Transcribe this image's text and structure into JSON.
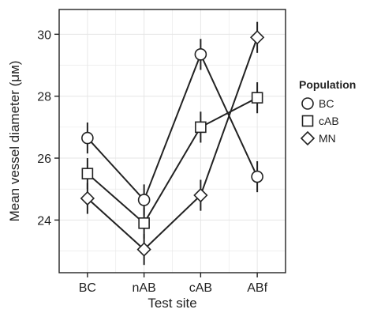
{
  "chart_data": {
    "type": "line",
    "title": "",
    "xlabel": "Test site",
    "ylabel": "Mean vessel diameter (μм)",
    "categories": [
      "BC",
      "nAB",
      "cAB",
      "ABf"
    ],
    "y_ticks": [
      24,
      26,
      28,
      30
    ],
    "ylim": [
      22.3,
      30.8
    ],
    "grid": true,
    "legend": {
      "title": "Population",
      "position": "right"
    },
    "series": [
      {
        "name": "BC",
        "marker": "circle",
        "values": [
          26.65,
          24.65,
          29.35,
          25.4
        ],
        "error": [
          0.5,
          0.5,
          0.5,
          0.5
        ]
      },
      {
        "name": "cAB",
        "marker": "square",
        "values": [
          25.5,
          23.9,
          27.0,
          27.95
        ],
        "error": [
          0.5,
          0.5,
          0.5,
          0.5
        ]
      },
      {
        "name": "MN",
        "marker": "diamond",
        "values": [
          24.7,
          23.05,
          24.8,
          29.9
        ],
        "error": [
          0.5,
          0.5,
          0.5,
          0.5
        ]
      }
    ],
    "colors": {
      "line": "#222222",
      "grid": "#e6e6e6",
      "marker_fill": "#ffffff"
    }
  }
}
